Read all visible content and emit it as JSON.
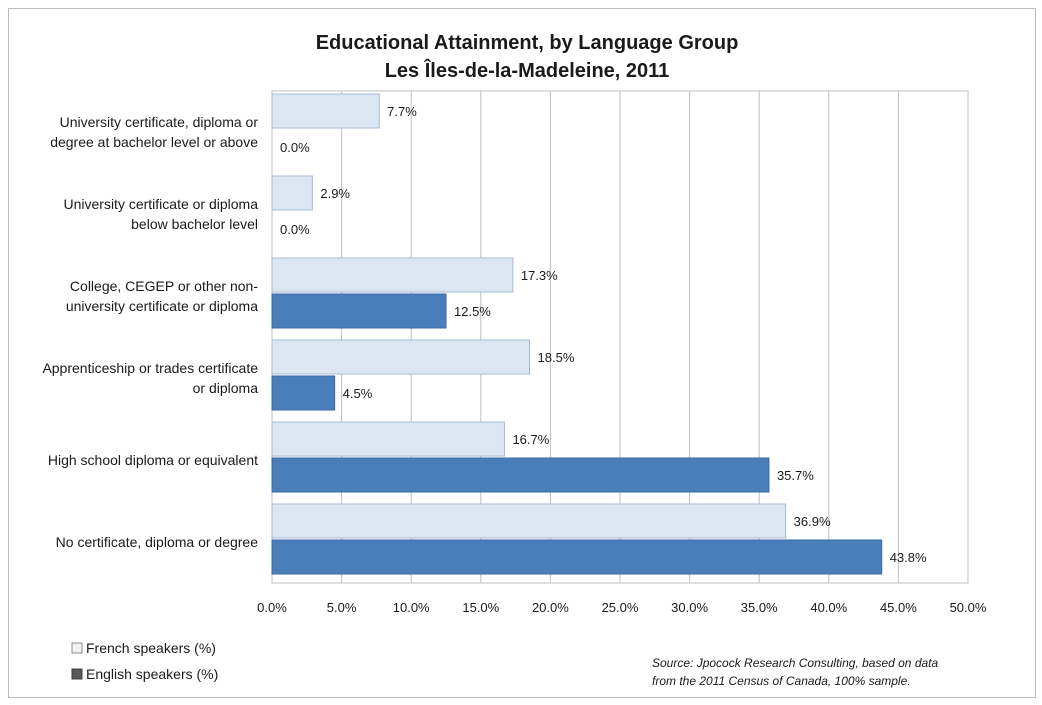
{
  "chart_data": {
    "type": "bar",
    "orientation": "horizontal",
    "title": "Educational Attainment, by Language Group",
    "subtitle": "Les Îles-de-la-Madeleine, 2011",
    "categories": [
      [
        "University certificate, diploma or",
        "degree at bachelor level or above"
      ],
      [
        "University certificate or diploma",
        "below bachelor level"
      ],
      [
        "College, CEGEP or other non-",
        "university certificate or diploma"
      ],
      [
        "Apprenticeship or trades certificate",
        "or diploma"
      ],
      [
        "High school diploma or equivalent"
      ],
      [
        "No certificate, diploma or degree"
      ]
    ],
    "series": [
      {
        "name": "French speakers (%)",
        "color": "#dce6f2",
        "values": [
          7.7,
          2.9,
          17.3,
          18.5,
          16.7,
          36.9
        ]
      },
      {
        "name": "English speakers (%)",
        "color": "#4a7ebb",
        "values": [
          0.0,
          0.0,
          12.5,
          4.5,
          35.7,
          43.8
        ]
      }
    ],
    "x_ticks": [
      "0.0%",
      "5.0%",
      "10.0%",
      "15.0%",
      "20.0%",
      "25.0%",
      "30.0%",
      "35.0%",
      "40.0%",
      "45.0%",
      "50.0%"
    ],
    "xlim": [
      0,
      50
    ],
    "grid": true,
    "legend_position": "bottom-left"
  },
  "source_lines": [
    "Source: Jpocock Research Consulting, based on data",
    "from the 2011 Census of Canada, 100% sample."
  ]
}
